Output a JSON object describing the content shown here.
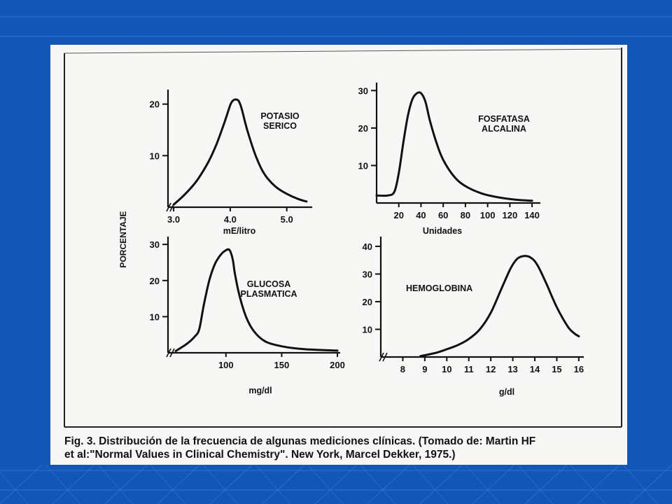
{
  "slide": {
    "background_color": "#1456b8",
    "line_color": "#3f86e0",
    "paper_color": "#f7f7f5"
  },
  "figure": {
    "y_axis_label": "PORCENTAJE",
    "caption_prefix": "Fig. 3.",
    "caption_line1": " Distribución de la frecuencia de algunas mediciones clínicas. (Tomado de: Martin HF",
    "caption_line2": "et al:\"Normal Values in Clinical Chemistry\". New York, Marcel Dekker, 1975.)"
  },
  "chart_data": [
    {
      "type": "line",
      "annotation": [
        "POTASIO",
        "SERICO"
      ],
      "xlabel": "mE/litro",
      "ylabel": "PORCENTAJE",
      "xlim": [
        2.9,
        5.4
      ],
      "ylim": [
        0,
        22
      ],
      "xticks": [
        3.0,
        4.0,
        5.0
      ],
      "xtick_labels": [
        "3.0",
        "4.0",
        "5.0"
      ],
      "yticks": [
        10,
        20
      ],
      "axis_break": true,
      "x": [
        3.0,
        3.2,
        3.4,
        3.6,
        3.75,
        3.9,
        4.0,
        4.05,
        4.1,
        4.15,
        4.2,
        4.3,
        4.45,
        4.6,
        4.8,
        5.0,
        5.2,
        5.35
      ],
      "y": [
        0.5,
        2.5,
        5.0,
        8.5,
        12.0,
        16.5,
        19.8,
        20.7,
        20.9,
        20.6,
        19.2,
        15.0,
        10.0,
        6.5,
        4.0,
        2.6,
        1.6,
        1.1
      ]
    },
    {
      "type": "line",
      "annotation": [
        "FOSFATASA",
        "ALCALINA"
      ],
      "xlabel": "Unidades",
      "ylabel": "",
      "xlim": [
        0,
        145
      ],
      "ylim": [
        0,
        31
      ],
      "xticks": [
        20,
        40,
        60,
        80,
        100,
        120,
        140
      ],
      "xtick_labels": [
        "20",
        "40",
        "60",
        "80",
        "100",
        "120",
        "140"
      ],
      "yticks": [
        10,
        20,
        30
      ],
      "axis_break": false,
      "x": [
        0,
        10,
        16,
        20,
        24,
        28,
        32,
        36,
        40,
        44,
        48,
        54,
        60,
        70,
        80,
        95,
        110,
        125,
        140
      ],
      "y": [
        2.0,
        2.0,
        3.0,
        8.0,
        16.0,
        23.0,
        27.5,
        29.2,
        29.3,
        27.0,
        22.0,
        16.0,
        11.5,
        7.0,
        4.5,
        2.5,
        1.5,
        0.9,
        0.6
      ]
    },
    {
      "type": "line",
      "annotation": [
        "GLUCOSA",
        "PLASMATICA"
      ],
      "xlabel": "mg/dl",
      "ylabel": "",
      "xlim": [
        48,
        200
      ],
      "ylim": [
        0,
        31
      ],
      "xticks": [
        100,
        150,
        200
      ],
      "xtick_labels": [
        "100",
        "150",
        "200"
      ],
      "yticks": [
        10,
        20,
        30
      ],
      "axis_break": true,
      "x": [
        55,
        65,
        72,
        76,
        80,
        85,
        90,
        95,
        99,
        103,
        106,
        108,
        112,
        118,
        125,
        135,
        150,
        170,
        200
      ],
      "y": [
        0.5,
        2.5,
        4.5,
        6.5,
        13.0,
        20.0,
        24.5,
        27.0,
        28.2,
        28.5,
        26.0,
        22.0,
        16.0,
        10.0,
        6.0,
        3.2,
        1.8,
        1.0,
        0.6
      ]
    },
    {
      "type": "line",
      "annotation": [
        "HEMOGLOBINA"
      ],
      "xlabel": "g/dl",
      "ylabel": "",
      "xlim": [
        7.0,
        16.1
      ],
      "ylim": [
        0,
        42
      ],
      "xticks": [
        8,
        9,
        10,
        11,
        12,
        13,
        14,
        15,
        16
      ],
      "xtick_labels": [
        "8",
        "9",
        "10",
        "11",
        "12",
        "13",
        "14",
        "15",
        "16"
      ],
      "yticks": [
        10,
        20,
        30,
        40
      ],
      "axis_break": true,
      "x": [
        8.8,
        9.5,
        10.0,
        10.5,
        11.0,
        11.5,
        12.0,
        12.5,
        12.9,
        13.2,
        13.5,
        13.8,
        14.1,
        14.5,
        15.0,
        15.5,
        15.8,
        16.0
      ],
      "y": [
        0.3,
        1.5,
        2.8,
        4.3,
        6.5,
        10.0,
        16.0,
        25.0,
        32.0,
        35.5,
        36.5,
        36.0,
        33.5,
        27.0,
        18.0,
        11.0,
        8.5,
        7.5
      ]
    }
  ]
}
